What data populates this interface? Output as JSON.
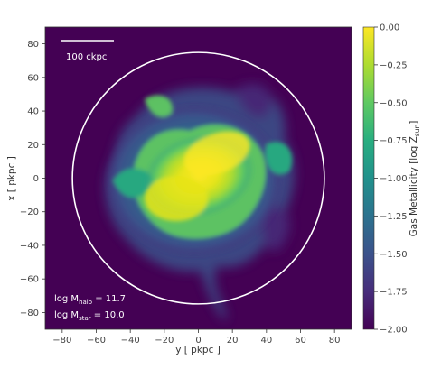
{
  "plot": {
    "xlabel": "y [ pkpc ]",
    "ylabel": "x [ pkpc ]",
    "xlim": [
      -90,
      90
    ],
    "ylim": [
      -90,
      90
    ],
    "xticks": [
      -80,
      -60,
      -40,
      -20,
      0,
      20,
      40,
      60,
      80
    ],
    "yticks": [
      80,
      60,
      40,
      20,
      0,
      -20,
      -40,
      -60,
      -80
    ],
    "background_color": "#440154",
    "circle_radius_pkpc": 74,
    "circle_color": "#ffffff"
  },
  "scalebar": {
    "label": "100 ckpc"
  },
  "annotations": {
    "line1_prefix": "log M",
    "line1_sub": "halo",
    "line1_value": " = 11.7",
    "line2_prefix": "log M",
    "line2_sub": "star",
    "line2_value": " = 10.0"
  },
  "colorbar": {
    "label_prefix": "Gas Metallicity [log Z",
    "label_sub": "sun",
    "label_suffix": "]",
    "range": [
      -2.0,
      0.0
    ],
    "ticks": [
      "0.00",
      "−0.25",
      "−0.50",
      "−0.75",
      "−1.00",
      "−1.25",
      "−1.50",
      "−1.75",
      "−2.00"
    ],
    "colormap": "viridis"
  }
}
